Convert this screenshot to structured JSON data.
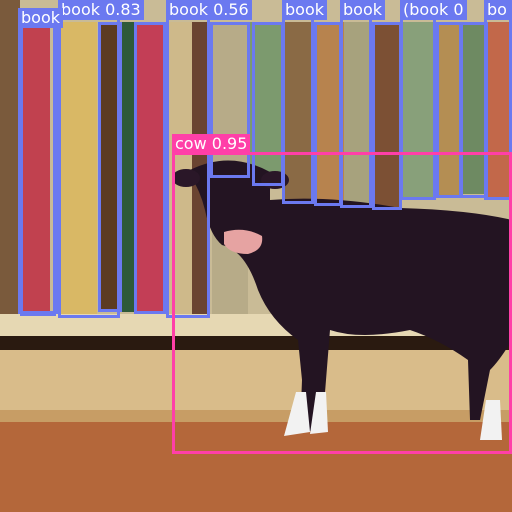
{
  "image": {
    "description_free": true,
    "colors": {
      "book_box": "#6b79f0",
      "cow_box": "#ff3fa8",
      "wall": "#cbbd99",
      "floor": "#b6683a",
      "cow": "#241523"
    }
  },
  "detections": [
    {
      "label": "book 0.83",
      "class": "book",
      "box_class": "top"
    },
    {
      "label": "book 0.56",
      "class": "book",
      "box_class": "top"
    },
    {
      "label": "book",
      "class": "book",
      "box_class": "top"
    },
    {
      "label": "book",
      "class": "book",
      "box_class": "top"
    },
    {
      "label": "(book 0",
      "class": "book",
      "box_class": "top"
    },
    {
      "label": "bo",
      "class": "book",
      "box_class": "top"
    },
    {
      "label": "book",
      "class": "book",
      "box_class": "top"
    },
    {
      "label": "cow 0.95",
      "class": "cow",
      "box_class": "cow"
    }
  ]
}
